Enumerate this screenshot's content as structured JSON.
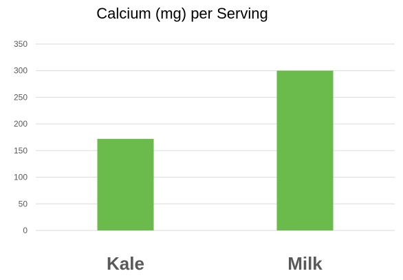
{
  "chart_data": {
    "type": "bar",
    "title": "Calcium (mg) per Serving",
    "xlabel": "",
    "ylabel": "",
    "categories": [
      "Kale",
      "Milk"
    ],
    "values": [
      172,
      300
    ],
    "ylim": [
      0,
      350
    ],
    "yticks": [
      0,
      50,
      100,
      150,
      200,
      250,
      300,
      350
    ],
    "grid": true,
    "legend": "none",
    "bar_color": "#6abb4b",
    "grid_color": "#d9d9d9",
    "tick_color": "#595959"
  }
}
